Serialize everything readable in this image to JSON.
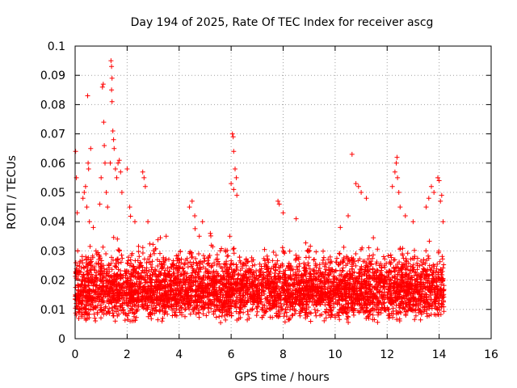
{
  "chart_data": {
    "type": "scatter",
    "title": "Day 194 of 2025, Rate Of TEC Index for receiver ascg",
    "xlabel": "GPS time / hours",
    "ylabel": "ROTI / TECUs",
    "xlim": [
      0,
      16
    ],
    "ylim": [
      0,
      0.1
    ],
    "x_ticks": [
      0,
      2,
      4,
      6,
      8,
      10,
      12,
      14,
      16
    ],
    "y_ticks": [
      0,
      0.01,
      0.02,
      0.03,
      0.04,
      0.05,
      0.06,
      0.07,
      0.08,
      0.09,
      0.1
    ],
    "x_tick_labels": [
      "0",
      "2",
      "4",
      "6",
      "8",
      "10",
      "12",
      "14",
      "16"
    ],
    "y_tick_labels": [
      "0",
      "0.01",
      "0.02",
      "0.03",
      "0.04",
      "0.05",
      "0.06",
      "0.07",
      "0.08",
      "0.09",
      "0.1"
    ],
    "grid": true,
    "marker": "+",
    "marker_color": "#ff0000",
    "series": [
      {
        "name": "ROTI",
        "data_range_hours": [
          0,
          14.2
        ],
        "typical_band": [
          0.005,
          0.03
        ],
        "points": [
          [
            0.02,
            0.064
          ],
          [
            0.05,
            0.055
          ],
          [
            0.08,
            0.043
          ],
          [
            0.1,
            0.03
          ],
          [
            0.15,
            0.022
          ],
          [
            0.2,
            0.018
          ],
          [
            0.3,
            0.048
          ],
          [
            0.35,
            0.05
          ],
          [
            0.4,
            0.052
          ],
          [
            0.45,
            0.045
          ],
          [
            0.5,
            0.06
          ],
          [
            0.52,
            0.058
          ],
          [
            0.48,
            0.083
          ],
          [
            0.6,
            0.065
          ],
          [
            0.55,
            0.04
          ],
          [
            0.7,
            0.038
          ],
          [
            0.8,
            0.03
          ],
          [
            0.95,
            0.046
          ],
          [
            1.0,
            0.055
          ],
          [
            1.05,
            0.086
          ],
          [
            1.08,
            0.087
          ],
          [
            1.1,
            0.074
          ],
          [
            1.12,
            0.066
          ],
          [
            1.15,
            0.06
          ],
          [
            1.2,
            0.05
          ],
          [
            1.25,
            0.045
          ],
          [
            1.38,
            0.095
          ],
          [
            1.4,
            0.093
          ],
          [
            1.42,
            0.089
          ],
          [
            1.4,
            0.085
          ],
          [
            1.42,
            0.081
          ],
          [
            1.45,
            0.071
          ],
          [
            1.48,
            0.068
          ],
          [
            1.5,
            0.065
          ],
          [
            1.35,
            0.06
          ],
          [
            1.55,
            0.058
          ],
          [
            1.6,
            0.055
          ],
          [
            1.65,
            0.06
          ],
          [
            1.7,
            0.061
          ],
          [
            1.75,
            0.057
          ],
          [
            1.8,
            0.05
          ],
          [
            2.0,
            0.058
          ],
          [
            2.1,
            0.045
          ],
          [
            2.3,
            0.04
          ],
          [
            2.6,
            0.057
          ],
          [
            2.65,
            0.055
          ],
          [
            2.7,
            0.052
          ],
          [
            2.8,
            0.04
          ],
          [
            3.5,
            0.035
          ],
          [
            4.4,
            0.045
          ],
          [
            4.5,
            0.047
          ],
          [
            4.6,
            0.042
          ],
          [
            4.9,
            0.04
          ],
          [
            5.2,
            0.036
          ],
          [
            6.05,
            0.07
          ],
          [
            6.08,
            0.069
          ],
          [
            6.1,
            0.064
          ],
          [
            6.15,
            0.058
          ],
          [
            6.2,
            0.055
          ],
          [
            6.0,
            0.053
          ],
          [
            6.1,
            0.051
          ],
          [
            6.22,
            0.049
          ],
          [
            5.95,
            0.035
          ],
          [
            7.8,
            0.047
          ],
          [
            7.85,
            0.046
          ],
          [
            8.0,
            0.043
          ],
          [
            8.5,
            0.041
          ],
          [
            10.2,
            0.038
          ],
          [
            10.5,
            0.042
          ],
          [
            10.8,
            0.053
          ],
          [
            10.9,
            0.052
          ],
          [
            11.0,
            0.05
          ],
          [
            10.65,
            0.063
          ],
          [
            11.2,
            0.048
          ],
          [
            12.2,
            0.052
          ],
          [
            12.3,
            0.057
          ],
          [
            12.35,
            0.06
          ],
          [
            12.38,
            0.062
          ],
          [
            12.4,
            0.055
          ],
          [
            12.45,
            0.05
          ],
          [
            12.5,
            0.045
          ],
          [
            12.7,
            0.042
          ],
          [
            13.0,
            0.04
          ],
          [
            13.5,
            0.045
          ],
          [
            13.6,
            0.048
          ],
          [
            13.7,
            0.052
          ],
          [
            13.8,
            0.05
          ],
          [
            13.95,
            0.055
          ],
          [
            14.0,
            0.054
          ],
          [
            14.05,
            0.047
          ],
          [
            14.1,
            0.049
          ],
          [
            14.15,
            0.04
          ]
        ]
      }
    ]
  }
}
